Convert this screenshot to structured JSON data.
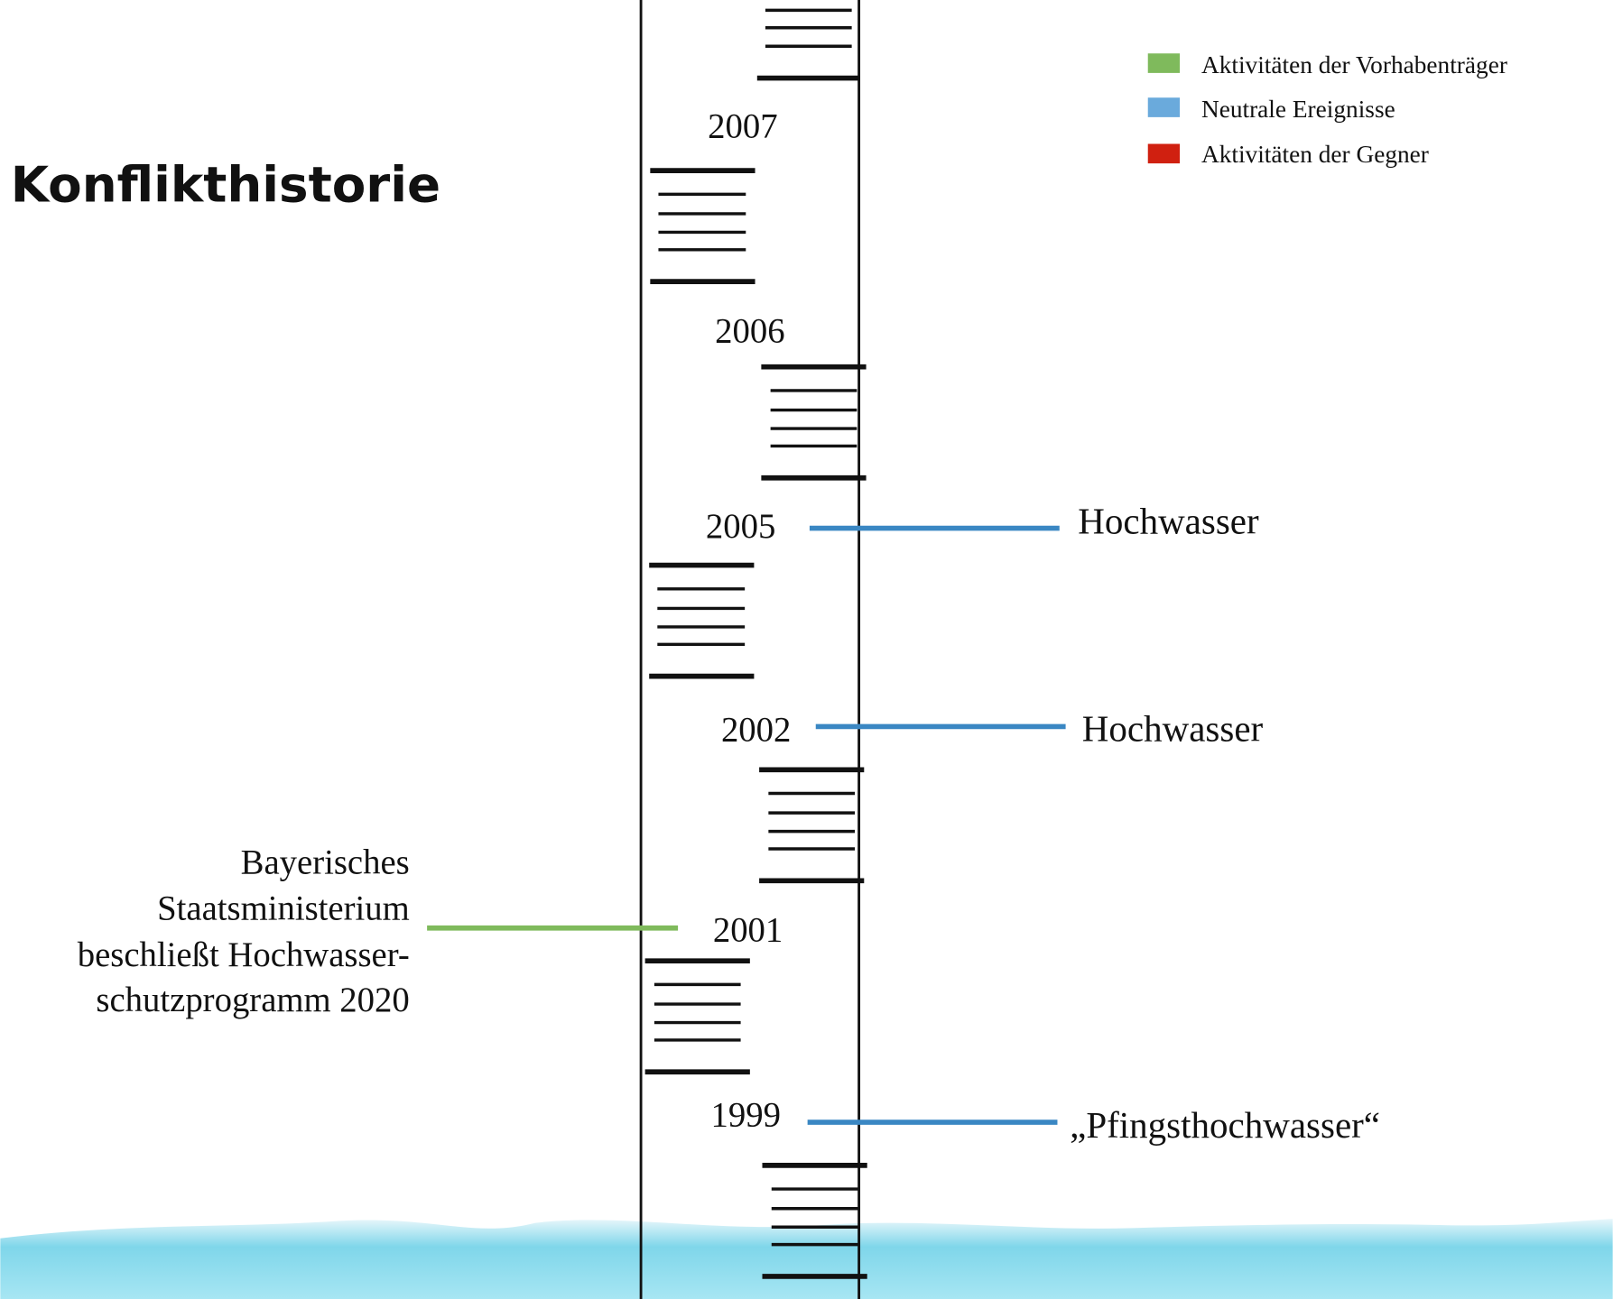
{
  "title": "Konflikthistorie",
  "legend": [
    {
      "label": "Aktivitäten der Vorhabenträger",
      "color": "#7fba5c"
    },
    {
      "label": "Neutrale Ereignisse",
      "color": "#6aaadc"
    },
    {
      "label": "Aktivitäten der Gegner",
      "color": "#d02010"
    }
  ],
  "years": [
    "2007",
    "2006",
    "2005",
    "2002",
    "2001",
    "1999"
  ],
  "events": [
    {
      "label": "Hochwasser"
    },
    {
      "label": "Hochwasser"
    },
    {
      "lines": [
        "Bayerisches",
        "Staatsministerium",
        "beschließt Hochwasser-",
        "schutzprogramm 2020"
      ]
    },
    {
      "label": "„Pfingsthochwasser“"
    }
  ]
}
